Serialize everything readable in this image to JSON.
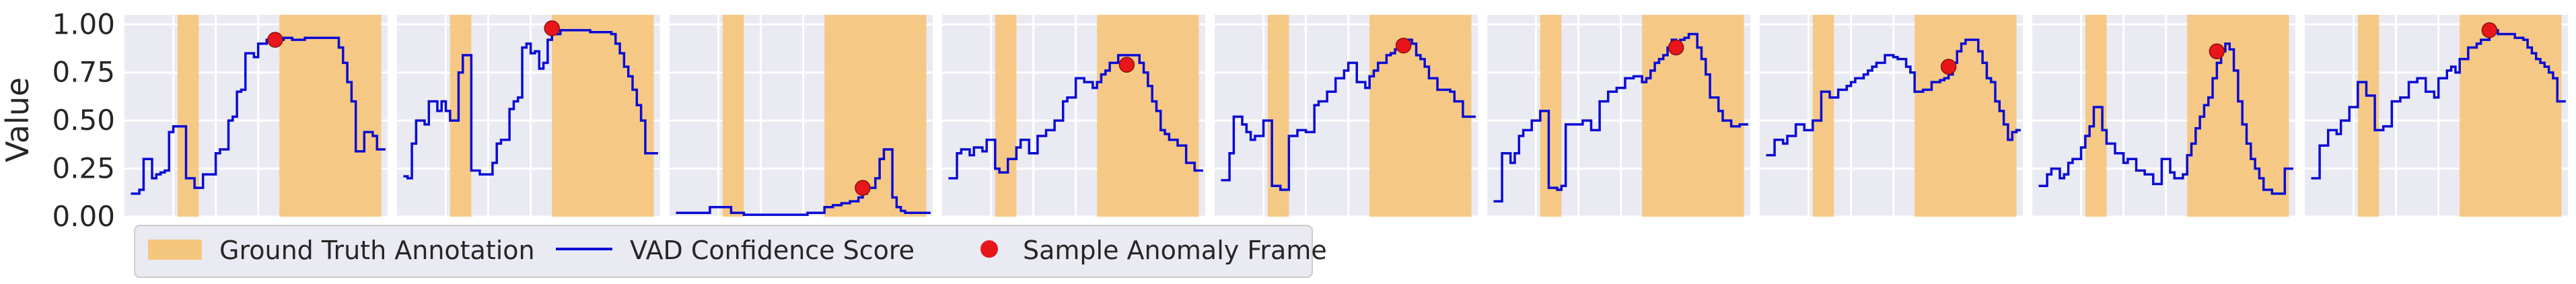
{
  "chart_data": {
    "type": "line",
    "ylabel": "Value",
    "ylim": [
      0,
      1.05
    ],
    "yticks": [
      "0.00",
      "0.25",
      "0.50",
      "0.75",
      "1.00"
    ],
    "grid": true,
    "legend": {
      "placement": "bottom-left",
      "entries": [
        "Ground Truth Annotation",
        "VAD Confidence Score",
        "Sample Anomaly Frame"
      ]
    },
    "colors": {
      "annotation": "#f5c77e",
      "line": "#0a0ad6",
      "marker": "#e8161b",
      "panel_bg": "#eaeaf2"
    },
    "panels": [
      {
        "x": [
          0,
          1,
          2,
          3,
          4,
          5,
          6,
          7,
          8,
          9,
          10,
          11,
          12,
          13,
          14,
          15,
          16,
          17,
          18,
          19,
          20,
          21,
          22,
          23,
          24,
          25,
          26,
          27,
          28,
          29,
          30,
          31,
          32,
          33,
          34,
          35,
          36,
          37,
          38,
          39,
          40,
          41,
          42,
          43,
          44,
          45,
          46,
          47,
          48,
          49,
          50,
          51,
          52,
          53,
          54,
          55,
          56,
          57,
          58,
          59
        ],
        "values": [
          0.12,
          0.12,
          0.14,
          0.3,
          0.3,
          0.2,
          0.22,
          0.23,
          0.24,
          0.44,
          0.47,
          0.47,
          0.47,
          0.2,
          0.2,
          0.15,
          0.15,
          0.22,
          0.22,
          0.22,
          0.33,
          0.35,
          0.35,
          0.5,
          0.52,
          0.65,
          0.66,
          0.85,
          0.85,
          0.83,
          0.9,
          0.9,
          0.92,
          0.92,
          0.92,
          0.92,
          0.93,
          0.93,
          0.92,
          0.92,
          0.92,
          0.93,
          0.93,
          0.93,
          0.93,
          0.93,
          0.93,
          0.93,
          0.93,
          0.88,
          0.8,
          0.7,
          0.6,
          0.34,
          0.34,
          0.44,
          0.44,
          0.42,
          0.35,
          0.35
        ],
        "annotations": [
          [
            11,
            16
          ],
          [
            35,
            59
          ]
        ],
        "anomaly_point": [
          34,
          0.92
        ]
      },
      {
        "x": [
          0,
          1,
          2,
          3,
          4,
          5,
          6,
          7,
          8,
          9,
          10,
          11,
          12,
          13,
          14,
          15,
          16,
          17,
          18,
          19,
          20,
          21,
          22,
          23,
          24,
          25,
          26,
          27,
          28,
          29,
          30,
          31,
          32,
          33,
          34,
          35,
          36,
          37,
          38,
          39,
          40,
          41,
          42,
          43,
          44,
          45,
          46,
          47,
          48,
          49,
          50,
          51,
          52,
          53,
          54,
          55,
          56,
          57,
          58,
          59
        ],
        "values": [
          0.21,
          0.2,
          0.38,
          0.5,
          0.5,
          0.48,
          0.6,
          0.6,
          0.55,
          0.6,
          0.55,
          0.5,
          0.5,
          0.75,
          0.84,
          0.84,
          0.24,
          0.24,
          0.22,
          0.22,
          0.22,
          0.28,
          0.38,
          0.4,
          0.4,
          0.56,
          0.6,
          0.62,
          0.88,
          0.9,
          0.85,
          0.86,
          0.77,
          0.8,
          0.92,
          0.95,
          0.95,
          0.97,
          0.97,
          0.97,
          0.97,
          0.97,
          0.97,
          0.97,
          0.96,
          0.96,
          0.96,
          0.96,
          0.96,
          0.95,
          0.9,
          0.85,
          0.78,
          0.73,
          0.66,
          0.58,
          0.5,
          0.33,
          0.33,
          0.33
        ],
        "annotations": [
          [
            11,
            16
          ],
          [
            35,
            59
          ]
        ],
        "anomaly_point": [
          35,
          0.98
        ]
      },
      {
        "x": [
          0,
          1,
          2,
          3,
          4,
          5,
          6,
          7,
          8,
          9,
          10,
          11,
          12,
          13,
          14,
          15,
          16,
          17,
          18,
          19,
          20,
          21,
          22,
          23,
          24,
          25,
          26,
          27,
          28,
          29,
          30,
          31,
          32,
          33,
          34,
          35,
          36,
          37,
          38,
          39,
          40,
          41,
          42,
          43,
          44,
          45,
          46,
          47,
          48,
          49,
          50,
          51,
          52,
          53,
          54,
          55,
          56,
          57,
          58,
          59
        ],
        "values": [
          0.02,
          0.02,
          0.02,
          0.02,
          0.02,
          0.02,
          0.02,
          0.02,
          0.05,
          0.05,
          0.05,
          0.05,
          0.05,
          0.02,
          0.02,
          0.02,
          0.01,
          0.01,
          0.01,
          0.01,
          0.01,
          0.01,
          0.01,
          0.01,
          0.01,
          0.01,
          0.01,
          0.01,
          0.01,
          0.01,
          0.01,
          0.02,
          0.02,
          0.02,
          0.02,
          0.05,
          0.05,
          0.06,
          0.06,
          0.07,
          0.07,
          0.08,
          0.08,
          0.1,
          0.12,
          0.15,
          0.15,
          0.2,
          0.3,
          0.35,
          0.35,
          0.1,
          0.05,
          0.03,
          0.02,
          0.02,
          0.02,
          0.02,
          0.02,
          0.02
        ],
        "annotations": [
          [
            11,
            16
          ],
          [
            35,
            59
          ]
        ],
        "anomaly_point": [
          44,
          0.15
        ]
      },
      {
        "x": [
          0,
          1,
          2,
          3,
          4,
          5,
          6,
          7,
          8,
          9,
          10,
          11,
          12,
          13,
          14,
          15,
          16,
          17,
          18,
          19,
          20,
          21,
          22,
          23,
          24,
          25,
          26,
          27,
          28,
          29,
          30,
          31,
          32,
          33,
          34,
          35,
          36,
          37,
          38,
          39,
          40,
          41,
          42,
          43,
          44,
          45,
          46,
          47,
          48,
          49,
          50,
          51,
          52,
          53,
          54,
          55,
          56,
          57,
          58,
          59
        ],
        "values": [
          0.2,
          0.2,
          0.33,
          0.35,
          0.35,
          0.32,
          0.36,
          0.36,
          0.34,
          0.4,
          0.4,
          0.25,
          0.23,
          0.23,
          0.3,
          0.3,
          0.36,
          0.4,
          0.4,
          0.33,
          0.33,
          0.42,
          0.42,
          0.45,
          0.45,
          0.5,
          0.5,
          0.6,
          0.62,
          0.62,
          0.72,
          0.72,
          0.7,
          0.7,
          0.67,
          0.7,
          0.74,
          0.76,
          0.8,
          0.8,
          0.84,
          0.84,
          0.84,
          0.84,
          0.84,
          0.8,
          0.75,
          0.68,
          0.6,
          0.55,
          0.45,
          0.43,
          0.4,
          0.4,
          0.37,
          0.37,
          0.28,
          0.28,
          0.24,
          0.24
        ],
        "annotations": [
          [
            11,
            16
          ],
          [
            35,
            59
          ]
        ],
        "anomaly_point": [
          42,
          0.79
        ]
      },
      {
        "x": [
          0,
          1,
          2,
          3,
          4,
          5,
          6,
          7,
          8,
          9,
          10,
          11,
          12,
          13,
          14,
          15,
          16,
          17,
          18,
          19,
          20,
          21,
          22,
          23,
          24,
          25,
          26,
          27,
          28,
          29,
          30,
          31,
          32,
          33,
          34,
          35,
          36,
          37,
          38,
          39,
          40,
          41,
          42,
          43,
          44,
          45,
          46,
          47,
          48,
          49,
          50,
          51,
          52,
          53,
          54,
          55,
          56,
          57,
          58,
          59
        ],
        "values": [
          0.19,
          0.19,
          0.33,
          0.52,
          0.52,
          0.48,
          0.44,
          0.4,
          0.42,
          0.42,
          0.5,
          0.5,
          0.16,
          0.16,
          0.14,
          0.14,
          0.42,
          0.42,
          0.45,
          0.45,
          0.44,
          0.44,
          0.58,
          0.6,
          0.6,
          0.65,
          0.65,
          0.72,
          0.72,
          0.76,
          0.8,
          0.8,
          0.7,
          0.7,
          0.67,
          0.73,
          0.76,
          0.8,
          0.8,
          0.84,
          0.85,
          0.87,
          0.9,
          0.92,
          0.92,
          0.9,
          0.84,
          0.82,
          0.78,
          0.72,
          0.72,
          0.66,
          0.66,
          0.66,
          0.65,
          0.6,
          0.6,
          0.52,
          0.52,
          0.52
        ],
        "annotations": [
          [
            11,
            16
          ],
          [
            35,
            59
          ]
        ],
        "anomaly_point": [
          43,
          0.89
        ]
      },
      {
        "x": [
          0,
          1,
          2,
          3,
          4,
          5,
          6,
          7,
          8,
          9,
          10,
          11,
          12,
          13,
          14,
          15,
          16,
          17,
          18,
          19,
          20,
          21,
          22,
          23,
          24,
          25,
          26,
          27,
          28,
          29,
          30,
          31,
          32,
          33,
          34,
          35,
          36,
          37,
          38,
          39,
          40,
          41,
          42,
          43,
          44,
          45,
          46,
          47,
          48,
          49,
          50,
          51,
          52,
          53,
          54,
          55,
          56,
          57,
          58,
          59
        ],
        "values": [
          0.08,
          0.08,
          0.33,
          0.33,
          0.28,
          0.33,
          0.42,
          0.45,
          0.45,
          0.5,
          0.5,
          0.55,
          0.55,
          0.15,
          0.15,
          0.14,
          0.16,
          0.48,
          0.48,
          0.48,
          0.48,
          0.5,
          0.5,
          0.45,
          0.45,
          0.6,
          0.6,
          0.65,
          0.65,
          0.67,
          0.67,
          0.72,
          0.72,
          0.73,
          0.73,
          0.7,
          0.72,
          0.76,
          0.8,
          0.82,
          0.84,
          0.88,
          0.92,
          0.9,
          0.92,
          0.93,
          0.95,
          0.95,
          0.88,
          0.82,
          0.74,
          0.62,
          0.62,
          0.55,
          0.5,
          0.5,
          0.47,
          0.47,
          0.48,
          0.48
        ],
        "annotations": [
          [
            11,
            16
          ],
          [
            35,
            59
          ]
        ],
        "anomaly_point": [
          43,
          0.88
        ]
      },
      {
        "x": [
          0,
          1,
          2,
          3,
          4,
          5,
          6,
          7,
          8,
          9,
          10,
          11,
          12,
          13,
          14,
          15,
          16,
          17,
          18,
          19,
          20,
          21,
          22,
          23,
          24,
          25,
          26,
          27,
          28,
          29,
          30,
          31,
          32,
          33,
          34,
          35,
          36,
          37,
          38,
          39,
          40,
          41,
          42,
          43,
          44,
          45,
          46,
          47,
          48,
          49,
          50,
          51,
          52,
          53,
          54,
          55,
          56,
          57,
          58,
          59
        ],
        "values": [
          0.32,
          0.32,
          0.4,
          0.4,
          0.38,
          0.42,
          0.42,
          0.48,
          0.48,
          0.45,
          0.45,
          0.5,
          0.5,
          0.65,
          0.65,
          0.62,
          0.62,
          0.66,
          0.66,
          0.68,
          0.7,
          0.72,
          0.72,
          0.74,
          0.76,
          0.78,
          0.8,
          0.8,
          0.84,
          0.84,
          0.83,
          0.82,
          0.82,
          0.78,
          0.75,
          0.65,
          0.65,
          0.66,
          0.66,
          0.7,
          0.7,
          0.71,
          0.72,
          0.74,
          0.8,
          0.86,
          0.9,
          0.92,
          0.92,
          0.92,
          0.86,
          0.8,
          0.72,
          0.7,
          0.6,
          0.55,
          0.48,
          0.4,
          0.44,
          0.45
        ],
        "annotations": [
          [
            11,
            16
          ],
          [
            35,
            59
          ]
        ],
        "anomaly_point": [
          43,
          0.78
        ]
      },
      {
        "x": [
          0,
          1,
          2,
          3,
          4,
          5,
          6,
          7,
          8,
          9,
          10,
          11,
          12,
          13,
          14,
          15,
          16,
          17,
          18,
          19,
          20,
          21,
          22,
          23,
          24,
          25,
          26,
          27,
          28,
          29,
          30,
          31,
          32,
          33,
          34,
          35,
          36,
          37,
          38,
          39,
          40,
          41,
          42,
          43,
          44,
          45,
          46,
          47,
          48,
          49,
          50,
          51,
          52,
          53,
          54,
          55,
          56,
          57,
          58,
          59
        ],
        "values": [
          0.16,
          0.16,
          0.22,
          0.25,
          0.25,
          0.2,
          0.22,
          0.28,
          0.3,
          0.3,
          0.36,
          0.42,
          0.47,
          0.57,
          0.57,
          0.45,
          0.38,
          0.38,
          0.33,
          0.33,
          0.28,
          0.3,
          0.3,
          0.24,
          0.24,
          0.22,
          0.22,
          0.17,
          0.17,
          0.3,
          0.3,
          0.23,
          0.2,
          0.2,
          0.22,
          0.32,
          0.38,
          0.46,
          0.52,
          0.58,
          0.62,
          0.72,
          0.8,
          0.86,
          0.9,
          0.87,
          0.76,
          0.6,
          0.48,
          0.38,
          0.3,
          0.25,
          0.2,
          0.14,
          0.14,
          0.12,
          0.12,
          0.12,
          0.25,
          0.25
        ],
        "annotations": [
          [
            11,
            16
          ],
          [
            35,
            59
          ]
        ],
        "anomaly_point": [
          42,
          0.86
        ]
      },
      {
        "x": [
          0,
          1,
          2,
          3,
          4,
          5,
          6,
          7,
          8,
          9,
          10,
          11,
          12,
          13,
          14,
          15,
          16,
          17,
          18,
          19,
          20,
          21,
          22,
          23,
          24,
          25,
          26,
          27,
          28,
          29,
          30,
          31,
          32,
          33,
          34,
          35,
          36,
          37,
          38,
          39,
          40,
          41,
          42,
          43,
          44,
          45,
          46,
          47,
          48,
          49,
          50,
          51,
          52,
          53,
          54,
          55,
          56,
          57,
          58,
          59
        ],
        "values": [
          0.2,
          0.2,
          0.37,
          0.37,
          0.45,
          0.45,
          0.43,
          0.5,
          0.5,
          0.57,
          0.57,
          0.7,
          0.7,
          0.63,
          0.63,
          0.45,
          0.45,
          0.47,
          0.47,
          0.6,
          0.6,
          0.62,
          0.62,
          0.7,
          0.7,
          0.72,
          0.72,
          0.65,
          0.65,
          0.62,
          0.72,
          0.72,
          0.76,
          0.78,
          0.75,
          0.82,
          0.82,
          0.88,
          0.88,
          0.9,
          0.92,
          0.92,
          0.97,
          0.97,
          0.95,
          0.95,
          0.95,
          0.95,
          0.93,
          0.93,
          0.92,
          0.88,
          0.85,
          0.82,
          0.8,
          0.78,
          0.75,
          0.72,
          0.6,
          0.6
        ],
        "annotations": [
          [
            11,
            16
          ],
          [
            35,
            59
          ]
        ],
        "anomaly_point": [
          42,
          0.97
        ]
      }
    ]
  }
}
